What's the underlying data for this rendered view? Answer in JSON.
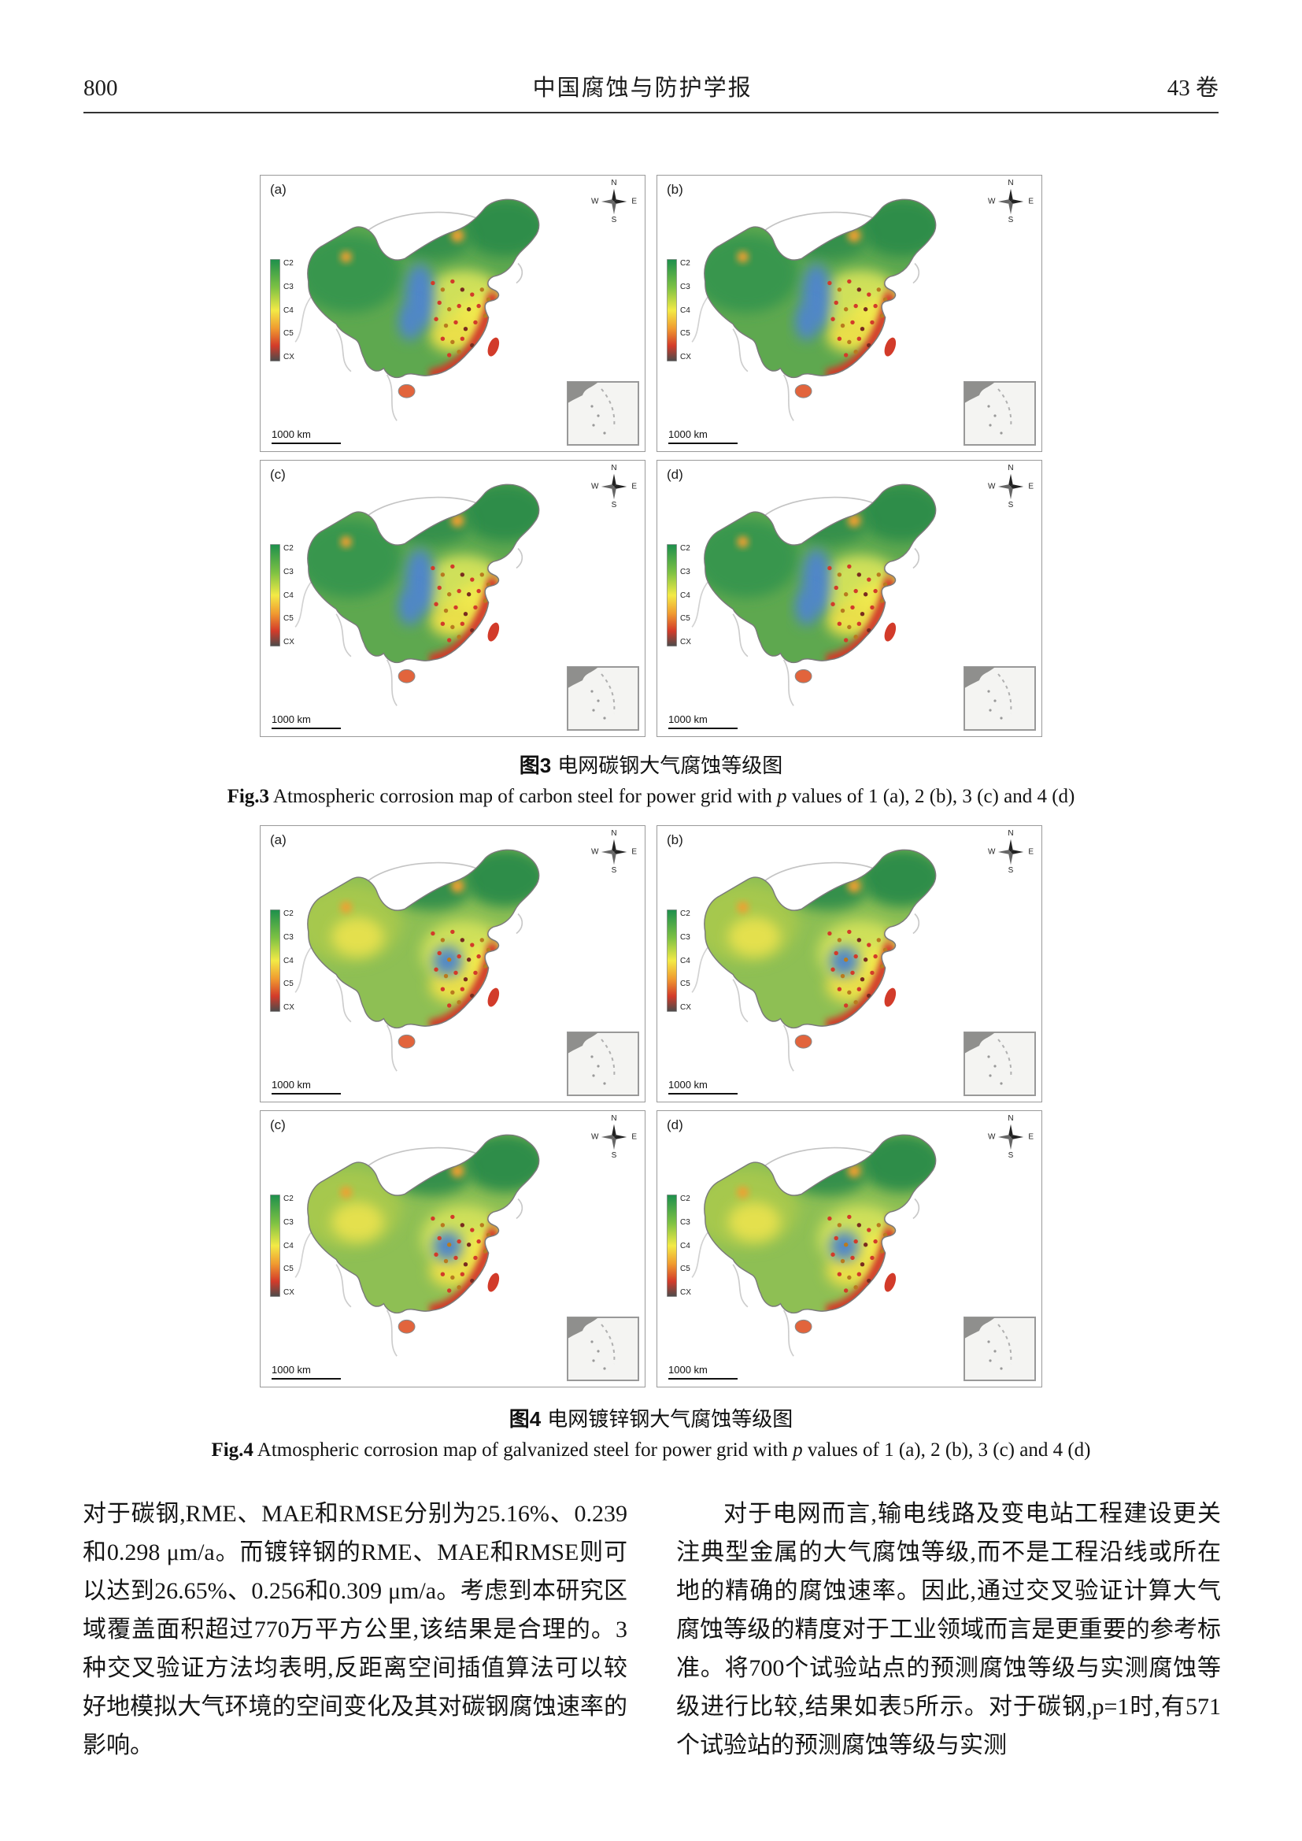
{
  "header": {
    "page_number": "800",
    "journal_title": "中国腐蚀与防护学报",
    "volume_label": "43 卷"
  },
  "map_panel": {
    "compass": {
      "north": "N",
      "south": "S",
      "west": "W",
      "east": "E"
    },
    "legend_labels": [
      "C2",
      "C3",
      "C4",
      "C5",
      "CX"
    ],
    "scale_label": "1000 km"
  },
  "figure3": {
    "panel_labels": [
      "(a)",
      "(b)",
      "(c)",
      "(d)"
    ],
    "caption_zh_bold": "图3",
    "caption_zh_rest": "电网碳钢大气腐蚀等级图",
    "caption_en_bold": "Fig.3",
    "caption_en_mid": " Atmospheric corrosion map of carbon steel for power grid with ",
    "caption_en_italic": "p",
    "caption_en_tail": " values of 1 (a), 2 (b), 3 (c) and 4 (d)"
  },
  "figure4": {
    "panel_labels": [
      "(a)",
      "(b)",
      "(c)",
      "(d)"
    ],
    "caption_zh_bold": "图4",
    "caption_zh_rest": "电网镀锌钢大气腐蚀等级图",
    "caption_en_bold": "Fig.4",
    "caption_en_mid": " Atmospheric corrosion map of galvanized steel for power grid with ",
    "caption_en_italic": "p",
    "caption_en_tail": " values of 1 (a), 2 (b), 3 (c) and 4 (d)"
  },
  "body": {
    "left_column": "对于碳钢,RME、MAE和RMSE分别为25.16%、0.239和0.298 μm/a。而镀锌钢的RME、MAE和RMSE则可以达到26.65%、0.256和0.309 μm/a。考虑到本研究区域覆盖面积超过770万平方公里,该结果是合理的。3种交叉验证方法均表明,反距离空间插值算法可以较好地模拟大气环境的空间变化及其对碳钢腐蚀速率的影响。",
    "right_column": "对于电网而言,输电线路及变电站工程建设更关注典型金属的大气腐蚀等级,而不是工程沿线或所在地的精确的腐蚀速率。因此,通过交叉验证计算大气腐蚀等级的精度对于工业领域而言是更重要的参考标准。将700个试验站点的预测腐蚀等级与实测腐蚀等级进行比较,结果如表5所示。对于碳钢,p=1时,有571个试验站的预测腐蚀等级与实测"
  },
  "colors": {
    "corrosion_low_green": "#2f8d4a",
    "corrosion_mid_yellow": "#efe84e",
    "corrosion_high_red": "#d23b2a",
    "corrosion_extreme_dark": "#4b4b4b",
    "interpolation_blue": "#4f86c9"
  }
}
